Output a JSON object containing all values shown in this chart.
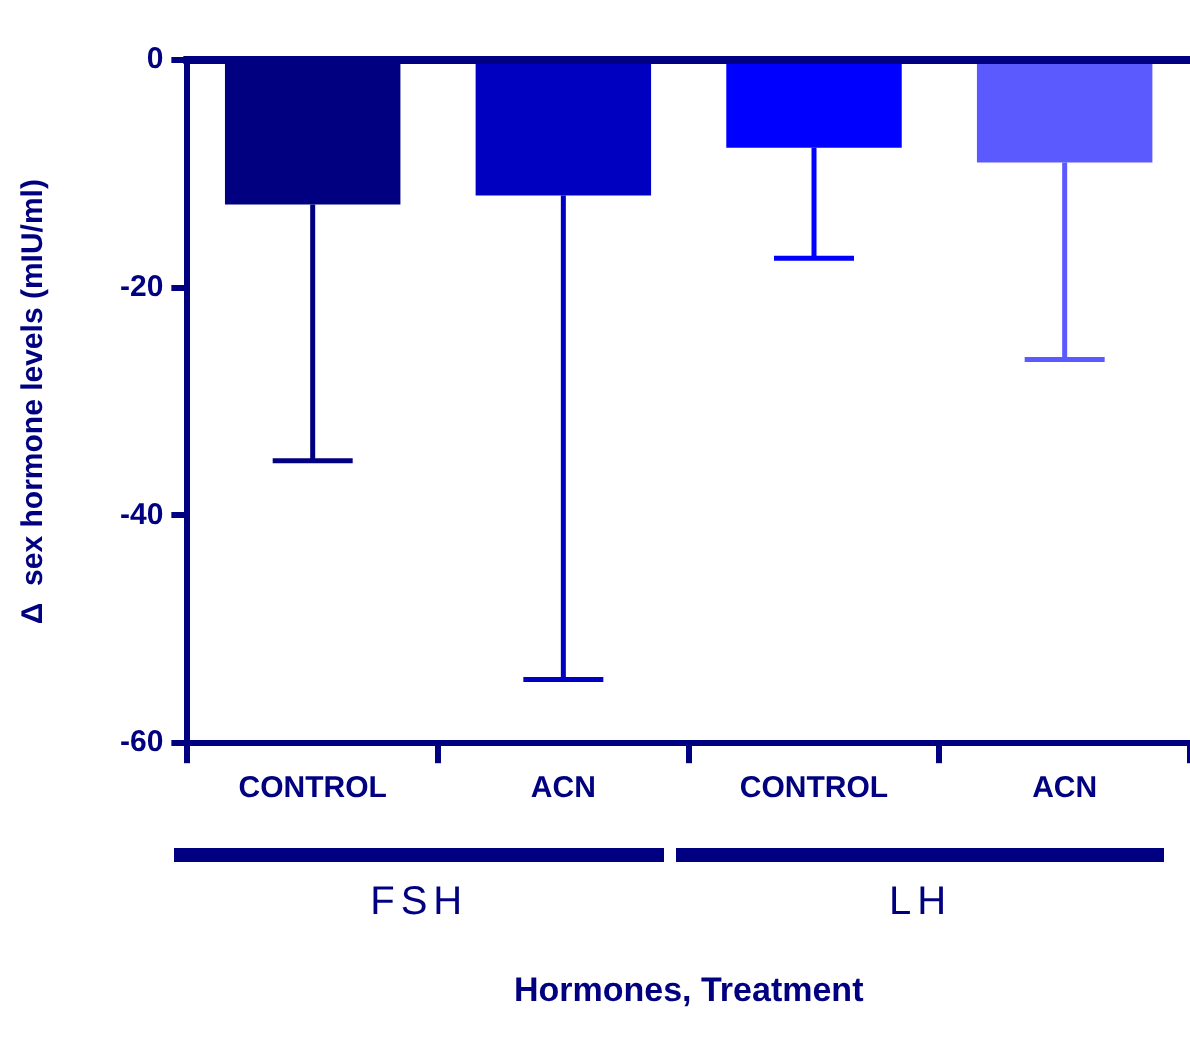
{
  "chart_data": {
    "type": "bar",
    "xlabel": "Hormones, Treatment",
    "ylabel": "Δ  sex hormone levels (mIU/ml)",
    "categories": [
      "CONTROL",
      "ACN",
      "CONTROL",
      "ACN"
    ],
    "values": [
      -12.7,
      -11.9,
      -7.7,
      -9.0
    ],
    "colors": [
      "#000080",
      "#0000c0",
      "#0000ff",
      "#5a5aff"
    ],
    "errors": [
      [
        -35.2,
        -12.7
      ],
      [
        -54.4,
        -11.9
      ],
      [
        -17.4,
        -7.7
      ],
      [
        -26.3,
        -9.0
      ]
    ],
    "ylim": [
      -60,
      0
    ],
    "yticks": [
      -60,
      -40,
      -20,
      0
    ],
    "ref_lines": [
      {
        "axis": "y",
        "value": 0,
        "color": "#000080"
      }
    ],
    "annotations": [
      "FSH",
      "LH"
    ],
    "grid": false,
    "legend": false
  }
}
